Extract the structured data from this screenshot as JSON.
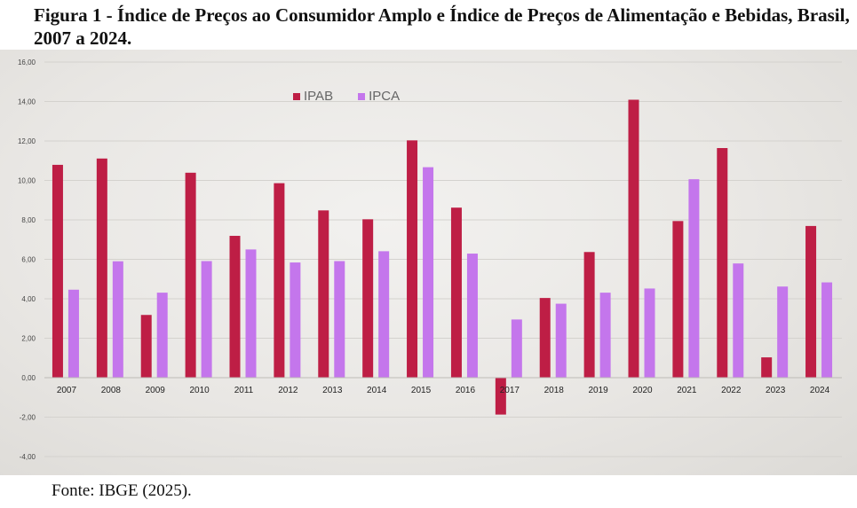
{
  "title": "Figura 1 - Índice de Preços ao Consumidor Amplo e Índice de Preços de Alimentação e Bebidas, Brasil, 2007 a 2024.",
  "source": "Fonte: IBGE (2025).",
  "colors": {
    "IPAB": "#be1e45",
    "IPCA": "#c476ec",
    "grid": "#d4d2ce",
    "axis": "#bdbbb6",
    "text": "#444444"
  },
  "chart_data": {
    "type": "bar",
    "categories": [
      "2007",
      "2008",
      "2009",
      "2010",
      "2011",
      "2012",
      "2013",
      "2014",
      "2015",
      "2016",
      "2017",
      "2018",
      "2019",
      "2020",
      "2021",
      "2022",
      "2023",
      "2024"
    ],
    "series": [
      {
        "name": "IPAB",
        "values": [
          10.79,
          11.11,
          3.18,
          10.39,
          7.19,
          9.86,
          8.48,
          8.03,
          12.03,
          8.62,
          -1.87,
          4.04,
          6.37,
          14.09,
          7.94,
          11.64,
          1.03,
          7.69
        ]
      },
      {
        "name": "IPCA",
        "values": [
          4.46,
          5.9,
          4.31,
          5.91,
          6.5,
          5.84,
          5.91,
          6.41,
          10.67,
          6.29,
          2.95,
          3.75,
          4.31,
          4.52,
          10.06,
          5.79,
          4.62,
          4.83
        ]
      }
    ],
    "ylim": [
      -4,
      16
    ],
    "yticks": [
      "-4,00",
      "-2,00",
      "0,00",
      "2,00",
      "4,00",
      "6,00",
      "8,00",
      "10,00",
      "12,00",
      "14,00",
      "16,00"
    ],
    "grid": true,
    "legend_position": "top-left"
  }
}
